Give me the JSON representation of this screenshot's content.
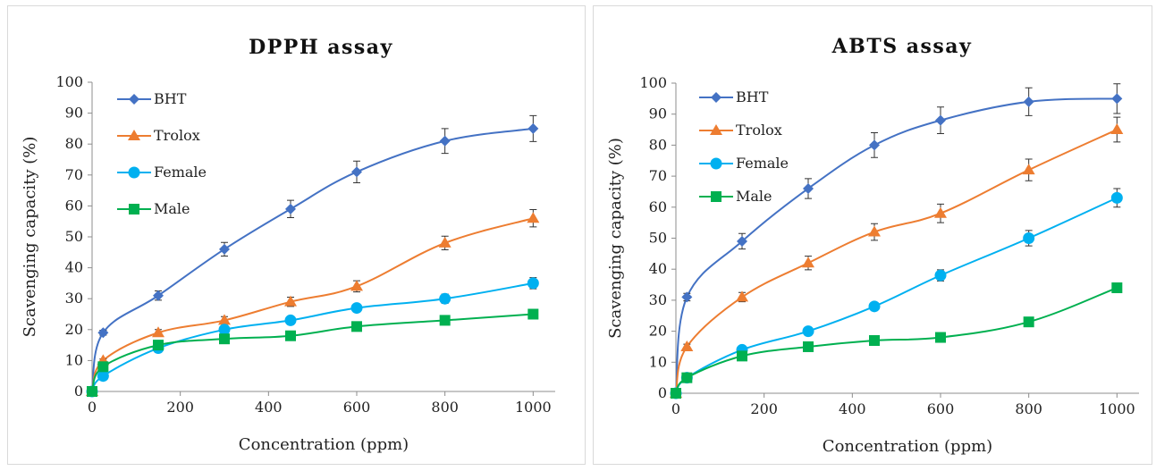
{
  "chart_data": [
    {
      "type": "line",
      "title": "DPPH assay",
      "xlabel": "Concentration (ppm)",
      "ylabel": "Scavenging capacity (%)",
      "xlim": [
        0,
        1050
      ],
      "ylim": [
        0,
        100
      ],
      "xticks": [
        0,
        200,
        400,
        600,
        800,
        1000
      ],
      "yticks": [
        0,
        10,
        20,
        30,
        40,
        50,
        60,
        70,
        80,
        90,
        100
      ],
      "grid": false,
      "legend_position": "top-left",
      "x": [
        0,
        25,
        150,
        300,
        450,
        600,
        800,
        1000
      ],
      "series": [
        {
          "name": "BHT",
          "color": "#4472c4",
          "marker": "diamond",
          "values": [
            0,
            19,
            31,
            46,
            59,
            71,
            81,
            85
          ],
          "errors": [
            0,
            0.8,
            1.5,
            2.2,
            2.8,
            3.5,
            4,
            4.2
          ]
        },
        {
          "name": "Trolox",
          "color": "#ed7d31",
          "marker": "triangle",
          "values": [
            0,
            10,
            19,
            23,
            29,
            34,
            48,
            56
          ],
          "errors": [
            0,
            0.5,
            1,
            1.2,
            1.5,
            1.8,
            2.2,
            2.8
          ]
        },
        {
          "name": "Female",
          "color": "#00b0f0",
          "marker": "circle",
          "values": [
            0,
            5,
            14,
            20,
            23,
            27,
            30,
            35
          ],
          "errors": [
            0,
            0.3,
            0.7,
            1,
            1,
            1.2,
            1.5,
            1.8
          ]
        },
        {
          "name": "Male",
          "color": "#00b050",
          "marker": "square",
          "values": [
            0,
            8,
            15,
            17,
            18,
            21,
            23,
            25
          ],
          "errors": [
            0,
            0.3,
            0.6,
            0.8,
            0.8,
            1,
            1,
            1.2
          ]
        }
      ]
    },
    {
      "type": "line",
      "title": "ABTS assay",
      "xlabel": "Concentration (ppm)",
      "ylabel": "Scavenging capacity (%)",
      "xlim": [
        0,
        1050
      ],
      "ylim": [
        0,
        100
      ],
      "xticks": [
        0,
        200,
        400,
        600,
        800,
        1000
      ],
      "yticks": [
        0,
        10,
        20,
        30,
        40,
        50,
        60,
        70,
        80,
        90,
        100
      ],
      "grid": false,
      "legend_position": "top-left",
      "x": [
        0,
        25,
        150,
        300,
        450,
        600,
        800,
        1000
      ],
      "series": [
        {
          "name": "BHT",
          "color": "#4472c4",
          "marker": "diamond",
          "values": [
            0,
            31,
            49,
            66,
            80,
            88,
            94,
            95
          ],
          "errors": [
            0,
            1.2,
            2.5,
            3.2,
            4,
            4.3,
            4.5,
            4.8
          ]
        },
        {
          "name": "Trolox",
          "color": "#ed7d31",
          "marker": "triangle",
          "values": [
            0,
            15,
            31,
            42,
            52,
            58,
            72,
            85
          ],
          "errors": [
            0,
            0.8,
            1.5,
            2.2,
            2.7,
            3,
            3.5,
            4
          ]
        },
        {
          "name": "Female",
          "color": "#00b0f0",
          "marker": "circle",
          "values": [
            0,
            5,
            14,
            20,
            28,
            38,
            50,
            63
          ],
          "errors": [
            0,
            0.3,
            0.8,
            1,
            1.2,
            1.8,
            2.5,
            3
          ]
        },
        {
          "name": "Male",
          "color": "#00b050",
          "marker": "square",
          "values": [
            0,
            5,
            12,
            15,
            17,
            18,
            23,
            34
          ],
          "errors": [
            0,
            0.3,
            0.5,
            0.7,
            0.8,
            0.8,
            1,
            1.5
          ]
        }
      ]
    }
  ]
}
